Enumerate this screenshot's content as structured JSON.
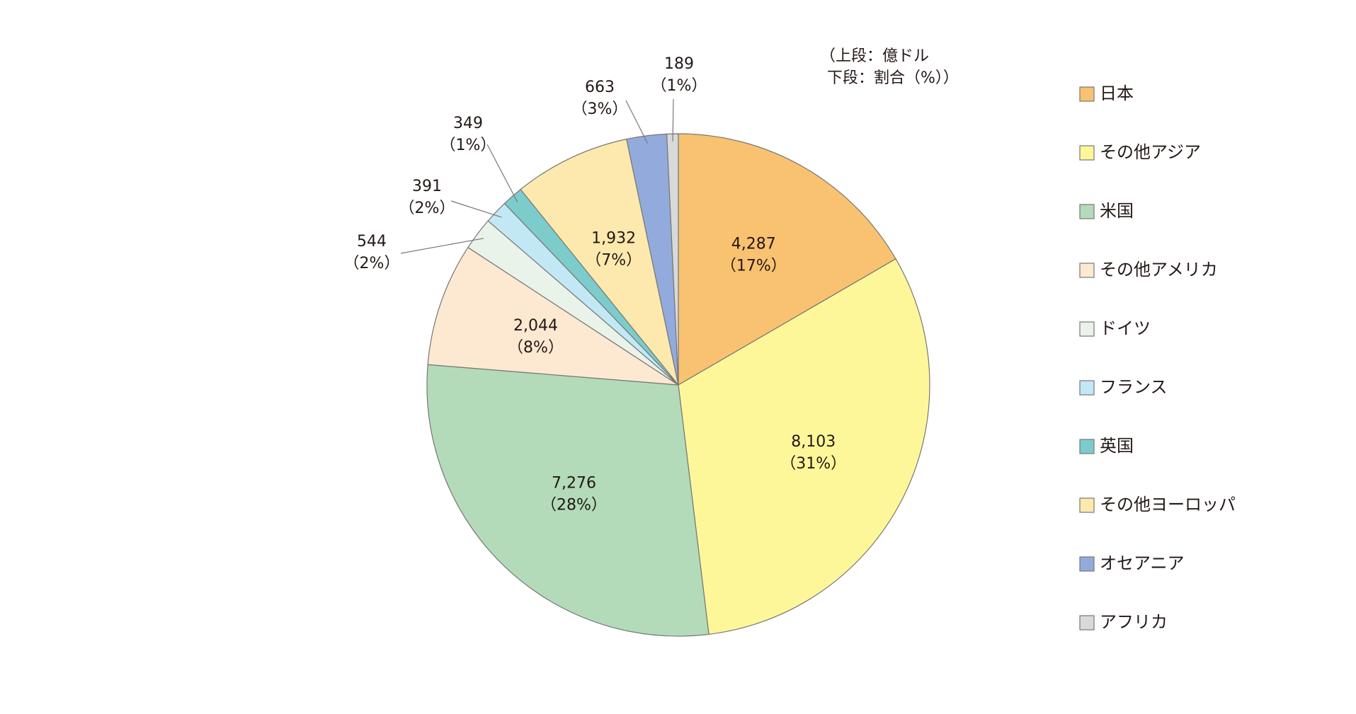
{
  "chart_data": {
    "type": "pie",
    "note": [
      "（上段：億ドル",
      "下段：割合（%））"
    ],
    "categories": [
      "日本",
      "その他アジア",
      "米国",
      "その他アメリカ",
      "ドイツ",
      "フランス",
      "英国",
      "その他ヨーロッパ",
      "オセアニア",
      "アフリカ"
    ],
    "values": [
      4287,
      8103,
      7276,
      2044,
      544,
      391,
      349,
      1932,
      663,
      189
    ],
    "value_labels": [
      "4,287",
      "8,103",
      "7,276",
      "2,044",
      "544",
      "391",
      "349",
      "1,932",
      "663",
      "189"
    ],
    "percents": [
      17,
      31,
      28,
      8,
      2,
      2,
      1,
      7,
      3,
      1
    ],
    "percent_labels": [
      "（17%）",
      "（31%）",
      "（28%）",
      "（8%）",
      "（2%）",
      "（2%）",
      "（1%）",
      "（7%）",
      "（3%）",
      "（1%）"
    ],
    "colors": [
      "#f9c271",
      "#fef79a",
      "#b3dbb9",
      "#fde8d2",
      "#eaf3ea",
      "#c2e8f6",
      "#7ccccb",
      "#fde9ad",
      "#93abdc",
      "#d9d9d9"
    ],
    "legend": "right"
  }
}
